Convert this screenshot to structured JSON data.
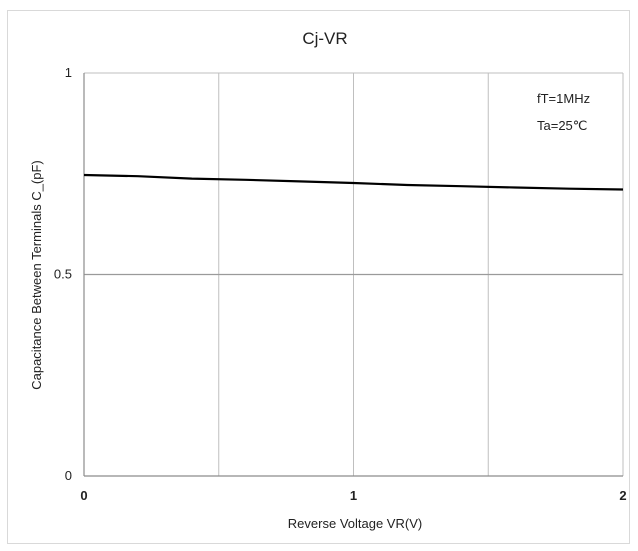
{
  "chart_data": {
    "type": "line",
    "title": "Cj-VR",
    "xlabel": "Reverse Voltage   VR(V)",
    "ylabel": "Capacitance Between Terminals C_(pF)",
    "xlim": [
      0,
      2
    ],
    "ylim": [
      0,
      1
    ],
    "x_ticks": [
      {
        "value": 0,
        "label": "0"
      },
      {
        "value": 1,
        "label": "1"
      },
      {
        "value": 2,
        "label": "2"
      }
    ],
    "y_ticks": [
      {
        "value": 0,
        "label": "0"
      },
      {
        "value": 0.5,
        "label": "0.5"
      },
      {
        "value": 1,
        "label": "1"
      }
    ],
    "grid": true,
    "x_gridlines": [
      0.5,
      1,
      1.5
    ],
    "y_gridlines": [
      0.5
    ],
    "annotations": [
      "fT=1MHz",
      "Ta=25℃"
    ],
    "series": [
      {
        "x": [
          0,
          0.2,
          0.4,
          0.6,
          0.8,
          1.0,
          1.2,
          1.4,
          1.6,
          1.8,
          2.0
        ],
        "y": [
          0.747,
          0.744,
          0.738,
          0.735,
          0.731,
          0.727,
          0.722,
          0.719,
          0.716,
          0.713,
          0.711
        ]
      }
    ],
    "colors": {
      "line": "#000000",
      "grid": "#bfbfbf",
      "axis": "#8c8c8c"
    }
  }
}
